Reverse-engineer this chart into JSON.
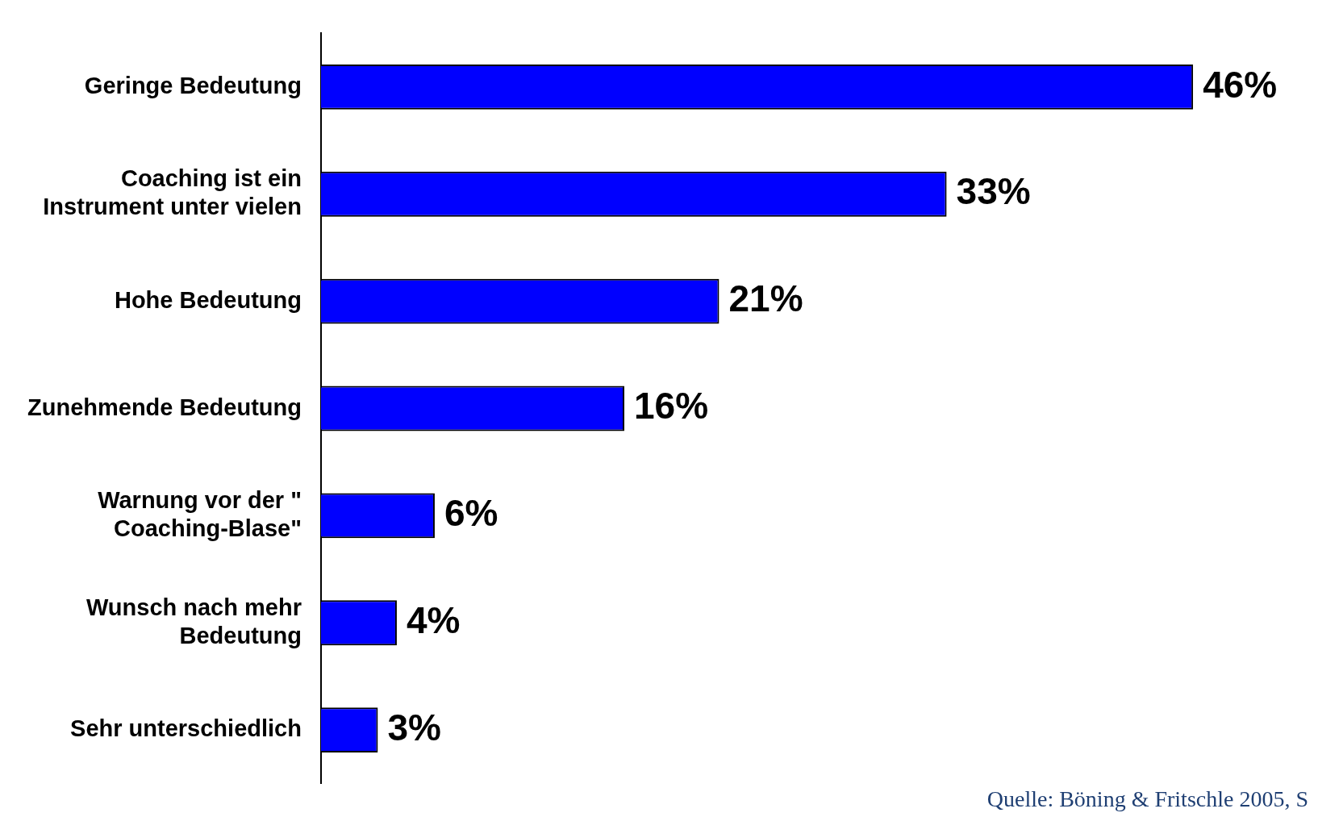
{
  "chart_data": {
    "type": "bar",
    "orientation": "horizontal",
    "categories": [
      "Geringe Bedeutung",
      "Coaching ist ein\nInstrument unter vielen",
      "Hohe Bedeutung",
      "Zunehmende Bedeutung",
      "Warnung vor der \"\nCoaching-Blase\"",
      "Wunsch nach mehr\nBedeutung",
      "Sehr unterschiedlich"
    ],
    "values": [
      46,
      33,
      21,
      16,
      6,
      4,
      3
    ],
    "value_labels": [
      "46%",
      "33%",
      "21%",
      "16%",
      "6%",
      "4%",
      "3%"
    ],
    "color": "#0000ff",
    "annotations": [
      "Quelle: Böning & Fritschle 2005, S"
    ]
  }
}
